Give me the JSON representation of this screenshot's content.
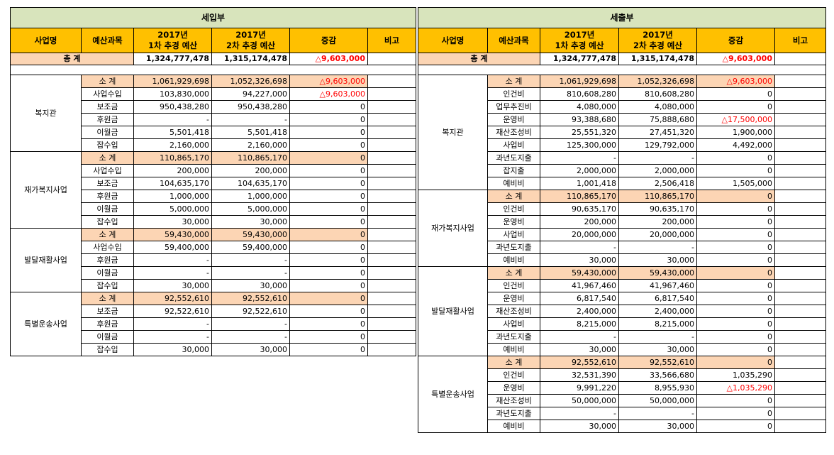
{
  "income": {
    "title": "세입부",
    "headers": [
      "사업명",
      "예산과목",
      "2017년\n1차 추경 예산",
      "2017년\n2차 추경 예산",
      "증감",
      "비고"
    ],
    "total": {
      "label": "총          계",
      "v1": "1,324,777,478",
      "v2": "1,315,174,478",
      "diff": "△9,603,000",
      "neg": true
    },
    "groups": [
      {
        "name": "복지관",
        "rows": [
          {
            "item": "소 계",
            "v1": "1,061,929,698",
            "v2": "1,052,326,698",
            "diff": "△9,603,000",
            "neg": true,
            "sub": true
          },
          {
            "item": "사업수입",
            "v1": "103,830,000",
            "v2": "94,227,000",
            "diff": "△9,603,000",
            "neg": true
          },
          {
            "item": "보조금",
            "v1": "950,438,280",
            "v2": "950,438,280",
            "diff": "0"
          },
          {
            "item": "후원금",
            "v1": "-",
            "v2": "-",
            "diff": "0"
          },
          {
            "item": "이월금",
            "v1": "5,501,418",
            "v2": "5,501,418",
            "diff": "0"
          },
          {
            "item": "잡수입",
            "v1": "2,160,000",
            "v2": "2,160,000",
            "diff": "0"
          }
        ]
      },
      {
        "name": "재가복지사업",
        "rows": [
          {
            "item": "소 계",
            "v1": "110,865,170",
            "v2": "110,865,170",
            "diff": "0",
            "sub": true
          },
          {
            "item": "사업수입",
            "v1": "200,000",
            "v2": "200,000",
            "diff": "0"
          },
          {
            "item": "보조금",
            "v1": "104,635,170",
            "v2": "104,635,170",
            "diff": "0"
          },
          {
            "item": "후원금",
            "v1": "1,000,000",
            "v2": "1,000,000",
            "diff": "0"
          },
          {
            "item": "이월금",
            "v1": "5,000,000",
            "v2": "5,000,000",
            "diff": "0"
          },
          {
            "item": "잡수입",
            "v1": "30,000",
            "v2": "30,000",
            "diff": "0"
          }
        ]
      },
      {
        "name": "발달재활사업",
        "rows": [
          {
            "item": "소 계",
            "v1": "59,430,000",
            "v2": "59,430,000",
            "diff": "0",
            "sub": true
          },
          {
            "item": "사업수입",
            "v1": "59,400,000",
            "v2": "59,400,000",
            "diff": "0"
          },
          {
            "item": "후원금",
            "v1": "-",
            "v2": "-",
            "diff": "0"
          },
          {
            "item": "이월금",
            "v1": "-",
            "v2": "-",
            "diff": "0"
          },
          {
            "item": "잡수입",
            "v1": "30,000",
            "v2": "30,000",
            "diff": "0"
          }
        ]
      },
      {
        "name": "특별운송사업",
        "rows": [
          {
            "item": "소 계",
            "v1": "92,552,610",
            "v2": "92,552,610",
            "diff": "0",
            "sub": true
          },
          {
            "item": "보조금",
            "v1": "92,522,610",
            "v2": "92,522,610",
            "diff": "0"
          },
          {
            "item": "후원금",
            "v1": "-",
            "v2": "-",
            "diff": "0"
          },
          {
            "item": "이월금",
            "v1": "-",
            "v2": "-",
            "diff": "0"
          },
          {
            "item": "잡수입",
            "v1": "30,000",
            "v2": "30,000",
            "diff": "0"
          }
        ]
      }
    ]
  },
  "expense": {
    "title": "세출부",
    "headers": [
      "사업명",
      "예산과목",
      "2017년\n1차 추경 예산",
      "2017년\n2차 추경 예산",
      "증감",
      "비고"
    ],
    "total": {
      "label": "총          계",
      "v1": "1,324,777,478",
      "v2": "1,315,174,478",
      "diff": "△9,603,000",
      "neg": true
    },
    "groups": [
      {
        "name": "복지관",
        "rows": [
          {
            "item": "소 계",
            "v1": "1,061,929,698",
            "v2": "1,052,326,698",
            "diff": "△9,603,000",
            "neg": true,
            "sub": true
          },
          {
            "item": "인건비",
            "v1": "810,608,280",
            "v2": "810,608,280",
            "diff": "0"
          },
          {
            "item": "업무추진비",
            "v1": "4,080,000",
            "v2": "4,080,000",
            "diff": "0"
          },
          {
            "item": "운영비",
            "v1": "93,388,680",
            "v2": "75,888,680",
            "diff": "△17,500,000",
            "neg": true
          },
          {
            "item": "재산조성비",
            "v1": "25,551,320",
            "v2": "27,451,320",
            "diff": "1,900,000"
          },
          {
            "item": "사업비",
            "v1": "125,300,000",
            "v2": "129,792,000",
            "diff": "4,492,000"
          },
          {
            "item": "과년도지출",
            "v1": "-",
            "v2": "-",
            "diff": "0"
          },
          {
            "item": "잡지출",
            "v1": "2,000,000",
            "v2": "2,000,000",
            "diff": "0"
          },
          {
            "item": "예비비",
            "v1": "1,001,418",
            "v2": "2,506,418",
            "diff": "1,505,000"
          }
        ]
      },
      {
        "name": "재가복지사업",
        "rows": [
          {
            "item": "소 계",
            "v1": "110,865,170",
            "v2": "110,865,170",
            "diff": "0",
            "sub": true
          },
          {
            "item": "인건비",
            "v1": "90,635,170",
            "v2": "90,635,170",
            "diff": "0"
          },
          {
            "item": "운영비",
            "v1": "200,000",
            "v2": "200,000",
            "diff": "0"
          },
          {
            "item": "사업비",
            "v1": "20,000,000",
            "v2": "20,000,000",
            "diff": "0"
          },
          {
            "item": "과년도지출",
            "v1": "-",
            "v2": "-",
            "diff": "0"
          },
          {
            "item": "예비비",
            "v1": "30,000",
            "v2": "30,000",
            "diff": "0"
          }
        ]
      },
      {
        "name": "발달재활사업",
        "rows": [
          {
            "item": "소 계",
            "v1": "59,430,000",
            "v2": "59,430,000",
            "diff": "0",
            "sub": true
          },
          {
            "item": "인건비",
            "v1": "41,967,460",
            "v2": "41,967,460",
            "diff": "0"
          },
          {
            "item": "운영비",
            "v1": "6,817,540",
            "v2": "6,817,540",
            "diff": "0"
          },
          {
            "item": "재산조성비",
            "v1": "2,400,000",
            "v2": "2,400,000",
            "diff": "0"
          },
          {
            "item": "사업비",
            "v1": "8,215,000",
            "v2": "8,215,000",
            "diff": "0"
          },
          {
            "item": "과년도지출",
            "v1": "-",
            "v2": "-",
            "diff": "0"
          },
          {
            "item": "예비비",
            "v1": "30,000",
            "v2": "30,000",
            "diff": "0"
          }
        ]
      },
      {
        "name": "특별운송사업",
        "rows": [
          {
            "item": "소 계",
            "v1": "92,552,610",
            "v2": "92,552,610",
            "diff": "0",
            "sub": true
          },
          {
            "item": "인건비",
            "v1": "32,531,390",
            "v2": "33,566,680",
            "diff": "1,035,290"
          },
          {
            "item": "운영비",
            "v1": "9,991,220",
            "v2": "8,955,930",
            "diff": "△1,035,290",
            "neg": true
          },
          {
            "item": "재산조성비",
            "v1": "50,000,000",
            "v2": "50,000,000",
            "diff": "0"
          },
          {
            "item": "과년도지출",
            "v1": "-",
            "v2": "-",
            "diff": "0"
          },
          {
            "item": "예비비",
            "v1": "30,000",
            "v2": "30,000",
            "diff": "0"
          }
        ]
      }
    ]
  }
}
